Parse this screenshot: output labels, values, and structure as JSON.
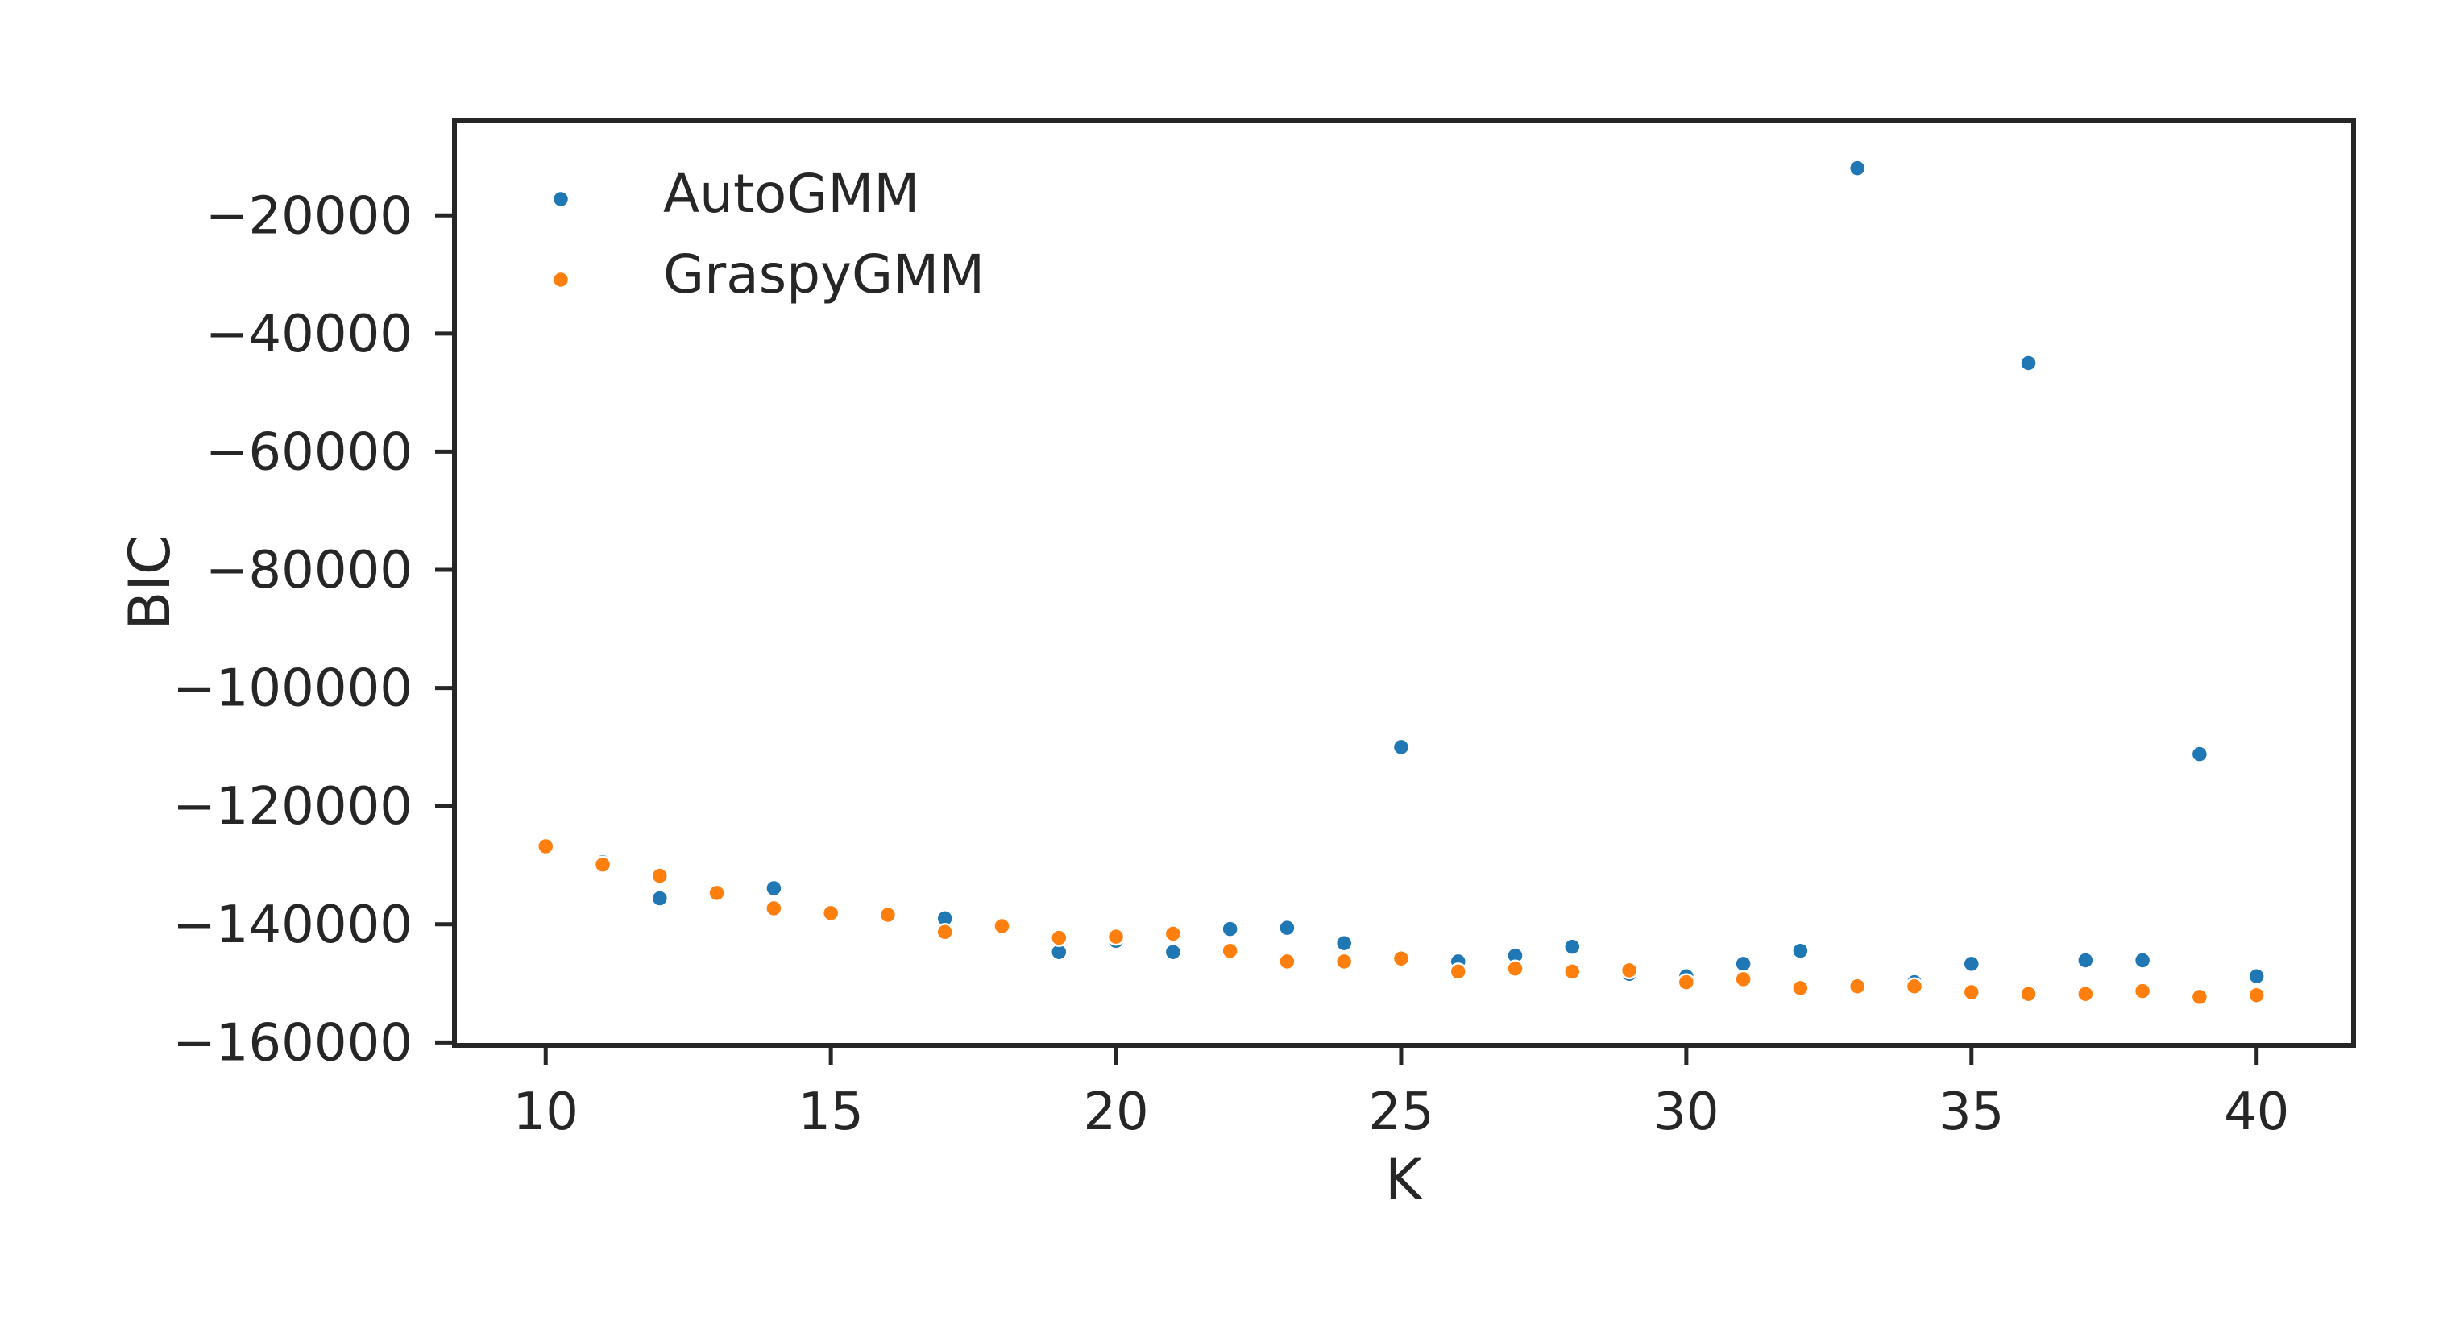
{
  "chart_data": {
    "type": "scatter",
    "xlabel": "K",
    "ylabel": "BIC",
    "xlim": [
      8.4,
      41.7
    ],
    "ylim": [
      -160500,
      -4000
    ],
    "xticks": [
      10,
      15,
      20,
      25,
      30,
      35,
      40
    ],
    "yticks": [
      -20000,
      -40000,
      -60000,
      -80000,
      -100000,
      -120000,
      -140000,
      -160000
    ],
    "ytick_labels": [
      "−20000",
      "−40000",
      "−60000",
      "−80000",
      "−100000",
      "−120000",
      "−140000",
      "−160000"
    ],
    "grid": false,
    "legend_position": "top-left",
    "series": [
      {
        "name": "AutoGMM",
        "color": "#1f77b4",
        "x": [
          10,
          11,
          12,
          13,
          14,
          15,
          16,
          17,
          18,
          19,
          20,
          21,
          22,
          23,
          24,
          25,
          26,
          27,
          28,
          29,
          30,
          31,
          32,
          33,
          34,
          35,
          36,
          37,
          38,
          39,
          40
        ],
        "y": [
          -126800,
          -129500,
          -135600,
          -134700,
          -133900,
          -138100,
          -138400,
          -139000,
          -140300,
          -144700,
          -142800,
          -144700,
          -140800,
          -140600,
          -143200,
          -110000,
          -146300,
          -145300,
          -143800,
          -148400,
          -148800,
          -146700,
          -144500,
          -12000,
          -149800,
          -146700,
          -45000,
          -146100,
          -146100,
          -111200,
          -148800
        ]
      },
      {
        "name": "GraspyGMM",
        "color": "#ff7f0e",
        "x": [
          10,
          11,
          12,
          13,
          14,
          15,
          16,
          17,
          18,
          19,
          20,
          21,
          22,
          23,
          24,
          25,
          26,
          27,
          28,
          29,
          30,
          31,
          32,
          33,
          34,
          35,
          36,
          37,
          38,
          39,
          40
        ],
        "y": [
          -126800,
          -129900,
          -131800,
          -134700,
          -137300,
          -138100,
          -138400,
          -141300,
          -140300,
          -142300,
          -142100,
          -141600,
          -144500,
          -146300,
          -146300,
          -145800,
          -148000,
          -147500,
          -148000,
          -147800,
          -149800,
          -149300,
          -150800,
          -150500,
          -150500,
          -151500,
          -151800,
          -151800,
          -151300,
          -152300,
          -152000
        ]
      }
    ]
  }
}
